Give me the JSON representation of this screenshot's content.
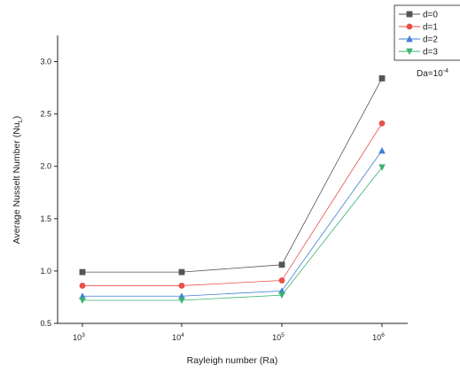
{
  "chart_data": {
    "type": "line",
    "title": "",
    "xlabel": "Rayleigh number (Ra)",
    "ylabel": "Average Nusselt Number (Nu",
    "ylabel_subscript": "L",
    "ylabel_suffix": ")",
    "x_scale": "log",
    "x": [
      1000,
      10000,
      100000,
      1000000
    ],
    "x_ticks": [
      {
        "base": "10",
        "exp": "3",
        "value": 1000
      },
      {
        "base": "10",
        "exp": "4",
        "value": 10000
      },
      {
        "base": "10",
        "exp": "5",
        "value": 100000
      },
      {
        "base": "10",
        "exp": "6",
        "value": 1000000
      }
    ],
    "ylim": [
      0.5,
      3.25
    ],
    "y_ticks": [
      "0.5",
      "1.0",
      "1.5",
      "2.0",
      "2.5",
      "3.0"
    ],
    "grid": false,
    "legend_position": "top-right",
    "series": [
      {
        "name": "d=0",
        "color": "#555555",
        "marker": "square",
        "values": [
          0.99,
          0.99,
          1.06,
          2.84
        ]
      },
      {
        "name": "d=1",
        "color": "#e8504a",
        "marker": "circle",
        "values": [
          0.86,
          0.86,
          0.91,
          2.41
        ]
      },
      {
        "name": "d=2",
        "color": "#3f7fd6",
        "marker": "triangle-up",
        "values": [
          0.76,
          0.76,
          0.81,
          2.15
        ]
      },
      {
        "name": "d=3",
        "color": "#3cb371",
        "marker": "triangle-down",
        "values": [
          0.72,
          0.72,
          0.77,
          1.99
        ]
      }
    ],
    "annotations": [
      {
        "base": "Da=10",
        "exp": "-4"
      }
    ]
  }
}
